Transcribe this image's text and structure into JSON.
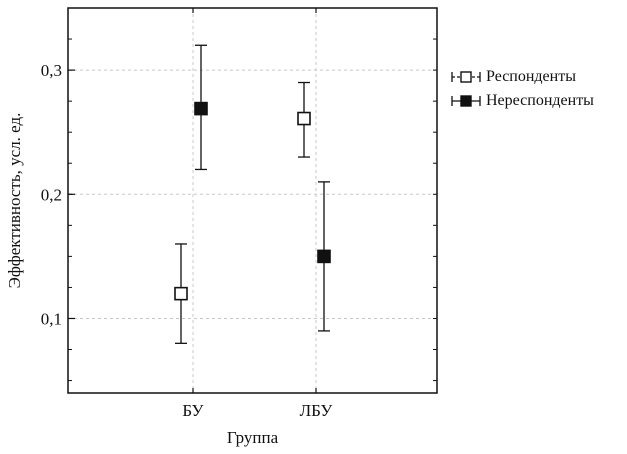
{
  "chart_data": {
    "type": "scatter",
    "variant": "error-bars",
    "xlabel": "Группа",
    "ylabel": "Эффективность, усл. ед.",
    "categories": [
      "БУ",
      "ЛБУ"
    ],
    "ylim": [
      0.04,
      0.35
    ],
    "yticks": [
      0.1,
      0.2,
      0.3
    ],
    "ytick_labels": [
      "0,1",
      "0,2",
      "0,3"
    ],
    "grid": true,
    "legend_position": "right",
    "series": [
      {
        "name": "Респонденты",
        "marker": "open-square",
        "color": "#111111",
        "values": [
          0.12,
          0.261
        ],
        "lower": [
          0.08,
          0.23
        ],
        "upper": [
          0.16,
          0.29
        ]
      },
      {
        "name": "Нереспонденты",
        "marker": "filled-square",
        "color": "#111111",
        "values": [
          0.269,
          0.15
        ],
        "lower": [
          0.22,
          0.09
        ],
        "upper": [
          0.32,
          0.21
        ]
      }
    ]
  }
}
